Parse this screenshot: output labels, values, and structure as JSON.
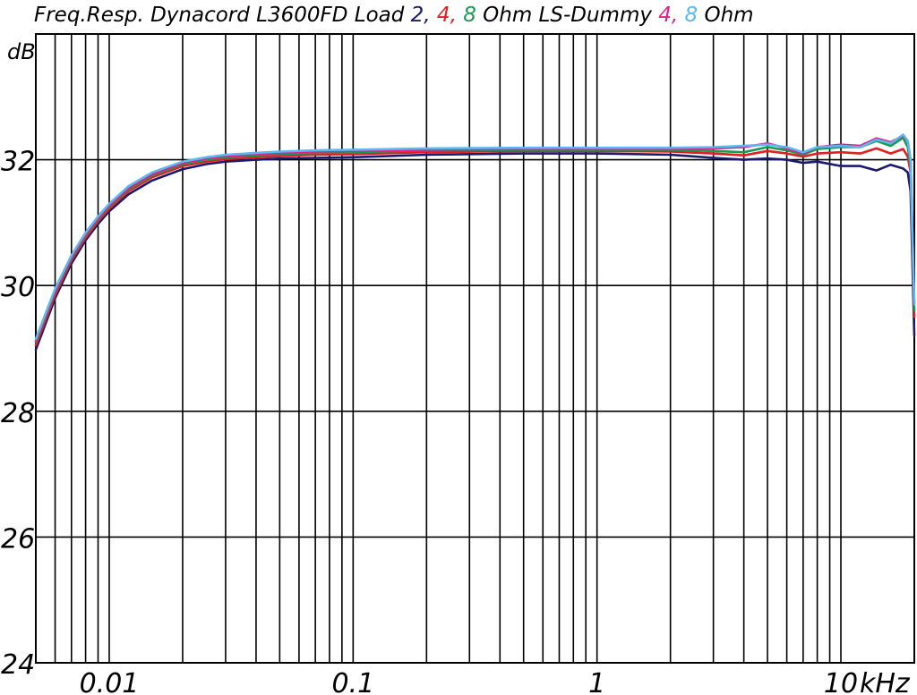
{
  "chart_data": {
    "type": "line",
    "title_parts": [
      {
        "text": "Freq.Resp. Dynacord L3600FD Load ",
        "color": "#000000"
      },
      {
        "text": "2",
        "color": "#1a1a6e"
      },
      {
        "text": ", ",
        "color": "#1a1a6e"
      },
      {
        "text": "4",
        "color": "#e02020"
      },
      {
        "text": ", ",
        "color": "#e02020"
      },
      {
        "text": "8",
        "color": "#1a9a50"
      },
      {
        "text": " Ohm LS-Dummy ",
        "color": "#000000"
      },
      {
        "text": "4",
        "color": "#e0208a"
      },
      {
        "text": ", ",
        "color": "#e0208a"
      },
      {
        "text": "8",
        "color": "#5ab8f0"
      },
      {
        "text": " Ohm",
        "color": "#000000"
      }
    ],
    "ylabel": "dB",
    "xunit": "kHz",
    "xscale": "log",
    "xlim": [
      0.005,
      20
    ],
    "ylim": [
      24,
      34
    ],
    "grid": true,
    "y_ticks": [
      {
        "value": 24,
        "label": "24"
      },
      {
        "value": 26,
        "label": "26"
      },
      {
        "value": 28,
        "label": "28"
      },
      {
        "value": 30,
        "label": "30"
      },
      {
        "value": 32,
        "label": "32"
      }
    ],
    "x_tick_labels": [
      {
        "value": 0.01,
        "label": "0.01"
      },
      {
        "value": 0.1,
        "label": "0.1"
      },
      {
        "value": 1,
        "label": "1"
      },
      {
        "value": 10,
        "label": "10"
      }
    ],
    "x_grid": [
      0.006,
      0.007,
      0.008,
      0.009,
      0.01,
      0.02,
      0.03,
      0.04,
      0.05,
      0.06,
      0.07,
      0.08,
      0.09,
      0.1,
      0.2,
      0.3,
      0.4,
      0.5,
      0.6,
      0.7,
      0.8,
      0.9,
      1,
      2,
      3,
      4,
      5,
      6,
      7,
      8,
      9,
      10,
      20
    ],
    "series": [
      {
        "name": "2 Ohm Load",
        "color": "#1a1a6e",
        "x": [
          0.005,
          0.006,
          0.007,
          0.008,
          0.009,
          0.01,
          0.012,
          0.015,
          0.02,
          0.025,
          0.03,
          0.04,
          0.05,
          0.07,
          0.1,
          0.2,
          0.5,
          1,
          2,
          3,
          4,
          5,
          6,
          7,
          8,
          10,
          12,
          14,
          16,
          18,
          18.8,
          19.3,
          19.6,
          20
        ],
        "y": [
          28.98,
          29.8,
          30.35,
          30.72,
          30.98,
          31.18,
          31.45,
          31.67,
          31.85,
          31.93,
          31.97,
          32.0,
          32.02,
          32.03,
          32.04,
          32.08,
          32.1,
          32.1,
          32.08,
          32.03,
          32.0,
          32.02,
          32.0,
          31.95,
          31.97,
          31.9,
          31.9,
          31.83,
          31.92,
          31.86,
          31.8,
          31.5,
          30.5,
          29.2
        ]
      },
      {
        "name": "4 Ohm Load",
        "color": "#e02020",
        "x": [
          0.005,
          0.006,
          0.007,
          0.008,
          0.009,
          0.01,
          0.012,
          0.015,
          0.02,
          0.025,
          0.03,
          0.04,
          0.05,
          0.07,
          0.1,
          0.2,
          0.5,
          1,
          2,
          3,
          4,
          5,
          6,
          7,
          8,
          10,
          12,
          14,
          16,
          18,
          18.8,
          19.3,
          19.6,
          20
        ],
        "y": [
          29.05,
          29.85,
          30.4,
          30.76,
          31.02,
          31.22,
          31.5,
          31.72,
          31.9,
          31.97,
          32.01,
          32.04,
          32.06,
          32.08,
          32.09,
          32.12,
          32.14,
          32.14,
          32.13,
          32.1,
          32.07,
          32.14,
          32.1,
          32.05,
          32.1,
          32.12,
          32.1,
          32.18,
          32.1,
          32.17,
          32.05,
          31.8,
          30.8,
          29.5
        ]
      },
      {
        "name": "8 Ohm Load",
        "color": "#1a9a50",
        "x": [
          0.005,
          0.006,
          0.007,
          0.008,
          0.009,
          0.01,
          0.012,
          0.015,
          0.02,
          0.025,
          0.03,
          0.04,
          0.05,
          0.07,
          0.1,
          0.2,
          0.5,
          1,
          2,
          3,
          4,
          5,
          6,
          7,
          8,
          10,
          12,
          14,
          16,
          18,
          18.8,
          19.3,
          19.6,
          20
        ],
        "y": [
          29.1,
          29.9,
          30.43,
          30.79,
          31.05,
          31.25,
          31.53,
          31.75,
          31.93,
          32.0,
          32.04,
          32.07,
          32.09,
          32.11,
          32.12,
          32.15,
          32.16,
          32.16,
          32.16,
          32.14,
          32.12,
          32.2,
          32.15,
          32.08,
          32.17,
          32.2,
          32.2,
          32.3,
          32.22,
          32.35,
          32.2,
          31.9,
          30.9,
          29.6
        ]
      },
      {
        "name": "4 Ohm LS-Dummy",
        "color": "#e0208a",
        "x": [
          0.005,
          0.006,
          0.007,
          0.008,
          0.009,
          0.01,
          0.012,
          0.015,
          0.02,
          0.025,
          0.03,
          0.04,
          0.05,
          0.07,
          0.1,
          0.2,
          0.5,
          1,
          2,
          3,
          4,
          5,
          6,
          7,
          8,
          10,
          12,
          14,
          16,
          18,
          18.8,
          19.3,
          19.6,
          20
        ],
        "y": [
          29.12,
          29.92,
          30.45,
          30.81,
          31.07,
          31.27,
          31.55,
          31.77,
          31.95,
          32.02,
          32.06,
          32.09,
          32.11,
          32.13,
          32.14,
          32.16,
          32.17,
          32.17,
          32.17,
          32.18,
          32.2,
          32.26,
          32.18,
          32.1,
          32.2,
          32.24,
          32.22,
          32.34,
          32.28,
          32.38,
          32.3,
          32.0,
          31.0,
          29.7
        ]
      },
      {
        "name": "8 Ohm LS-Dummy",
        "color": "#5ab8f0",
        "x": [
          0.005,
          0.006,
          0.007,
          0.008,
          0.009,
          0.01,
          0.012,
          0.015,
          0.02,
          0.025,
          0.03,
          0.04,
          0.05,
          0.07,
          0.1,
          0.2,
          0.5,
          1,
          2,
          3,
          4,
          5,
          6,
          7,
          8,
          10,
          12,
          14,
          16,
          18,
          18.8,
          19.3,
          19.6,
          20
        ],
        "y": [
          29.15,
          29.95,
          30.48,
          30.84,
          31.1,
          31.3,
          31.58,
          31.8,
          31.97,
          32.04,
          32.08,
          32.11,
          32.13,
          32.15,
          32.16,
          32.18,
          32.19,
          32.19,
          32.19,
          32.2,
          32.22,
          32.24,
          32.2,
          32.12,
          32.2,
          32.22,
          32.2,
          32.32,
          32.26,
          32.4,
          32.3,
          32.0,
          31.0,
          29.7
        ]
      }
    ]
  }
}
